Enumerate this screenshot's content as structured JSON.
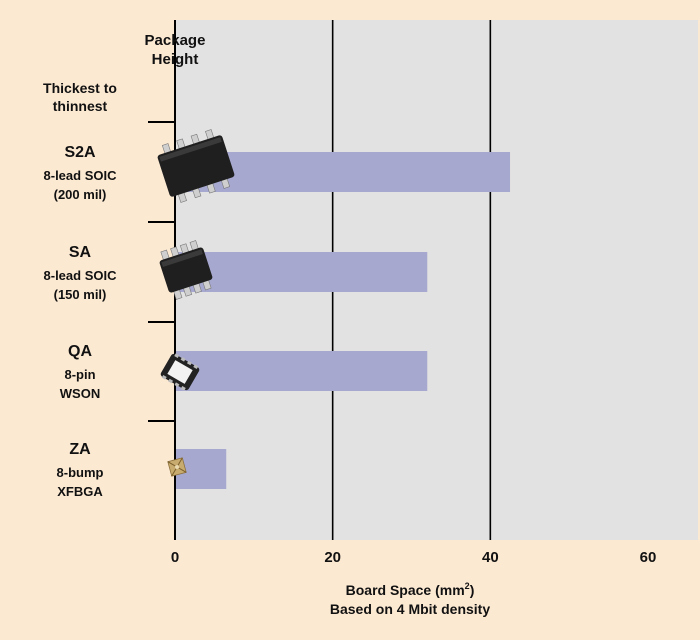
{
  "chart_data": {
    "type": "bar",
    "orientation": "horizontal",
    "yaxis_title_line1": "Package",
    "yaxis_title_line2": "Height",
    "order_note_line1": "Thickest to",
    "order_note_line2": "thinnest",
    "xlabel_line1": "Board Space (mm",
    "xlabel_sup": "2",
    "xlabel_line1_end": ")",
    "xlabel_line2": "Based on 4 Mbit density",
    "xlim": [
      0,
      60
    ],
    "xticks": [
      "0",
      "20",
      "40",
      "60"
    ],
    "grid": "vertical",
    "bar_color": "#a6a8cf",
    "plot_bg": "#e2e2e2",
    "bg_color": "#fce9d2",
    "categories": [
      {
        "code": "S2A",
        "line1": "8-lead SOIC",
        "line2": "(200 mil)",
        "value": 42.5,
        "chip": "soic-chip-icon"
      },
      {
        "code": "SA",
        "line1": "8-lead SOIC",
        "line2": "(150 mil)",
        "value": 32,
        "chip": "soic-chip-icon"
      },
      {
        "code": "QA",
        "line1": "8-pin",
        "line2": "WSON",
        "value": 32,
        "chip": "wson-chip-icon"
      },
      {
        "code": "ZA",
        "line1": "8-bump",
        "line2": "XFBGA",
        "value": 6.5,
        "chip": "xfbga-chip-icon"
      }
    ]
  }
}
